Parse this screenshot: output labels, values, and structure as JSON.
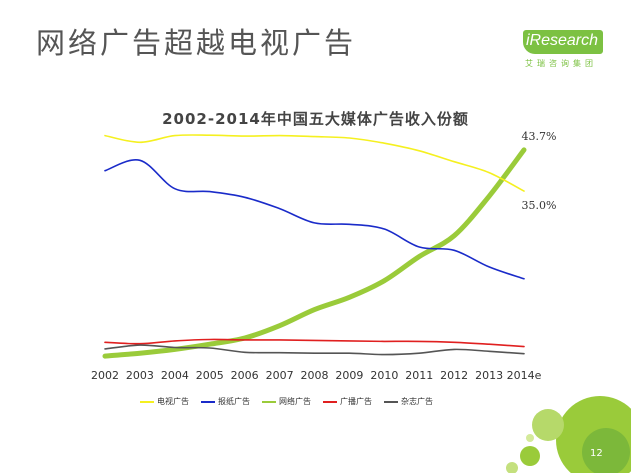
{
  "slide": {
    "title": "网络广告超越电视广告",
    "page_number": "12"
  },
  "logo": {
    "brand": "iResearch",
    "subtitle": "艾瑞咨询集团"
  },
  "chart_data": {
    "type": "line",
    "title": "2002-2014年中国五大媒体广告收入份额",
    "xlabel": "",
    "ylabel": "",
    "ylim": [
      0,
      0.5
    ],
    "x": [
      "2002",
      "2003",
      "2004",
      "2005",
      "2006",
      "2007",
      "2008",
      "2009",
      "2010",
      "2011",
      "2012",
      "2013",
      "2014e"
    ],
    "series": [
      {
        "name": "电视广告",
        "color": "#f5f020",
        "width": 1.6,
        "values": [
          0.467,
          0.453,
          0.467,
          0.468,
          0.466,
          0.467,
          0.465,
          0.462,
          0.451,
          0.435,
          0.412,
          0.389,
          0.35
        ]
      },
      {
        "name": "报纸广告",
        "color": "#1a2bc9",
        "width": 1.6,
        "values": [
          0.393,
          0.415,
          0.355,
          0.349,
          0.337,
          0.313,
          0.283,
          0.28,
          0.27,
          0.232,
          0.225,
          0.19,
          0.165
        ]
      },
      {
        "name": "网络广告",
        "color": "#9acb3a",
        "width": 5,
        "values": [
          0.002,
          0.008,
          0.016,
          0.027,
          0.04,
          0.066,
          0.1,
          0.126,
          0.161,
          0.212,
          0.256,
          0.339,
          0.437
        ]
      },
      {
        "name": "广播广告",
        "color": "#e02020",
        "width": 1.6,
        "values": [
          0.031,
          0.028,
          0.034,
          0.037,
          0.036,
          0.036,
          0.035,
          0.034,
          0.033,
          0.033,
          0.031,
          0.027,
          0.022
        ]
      },
      {
        "name": "杂志广告",
        "color": "#555555",
        "width": 1.6,
        "values": [
          0.017,
          0.025,
          0.02,
          0.019,
          0.01,
          0.009,
          0.008,
          0.008,
          0.005,
          0.008,
          0.016,
          0.012,
          0.007
        ]
      }
    ],
    "annotations": [
      {
        "text": "43.7%",
        "series": "网络广告",
        "index": 12
      },
      {
        "text": "35.0%",
        "series": "电视广告",
        "index": 12
      }
    ],
    "grid": false,
    "legend_position": "bottom"
  }
}
